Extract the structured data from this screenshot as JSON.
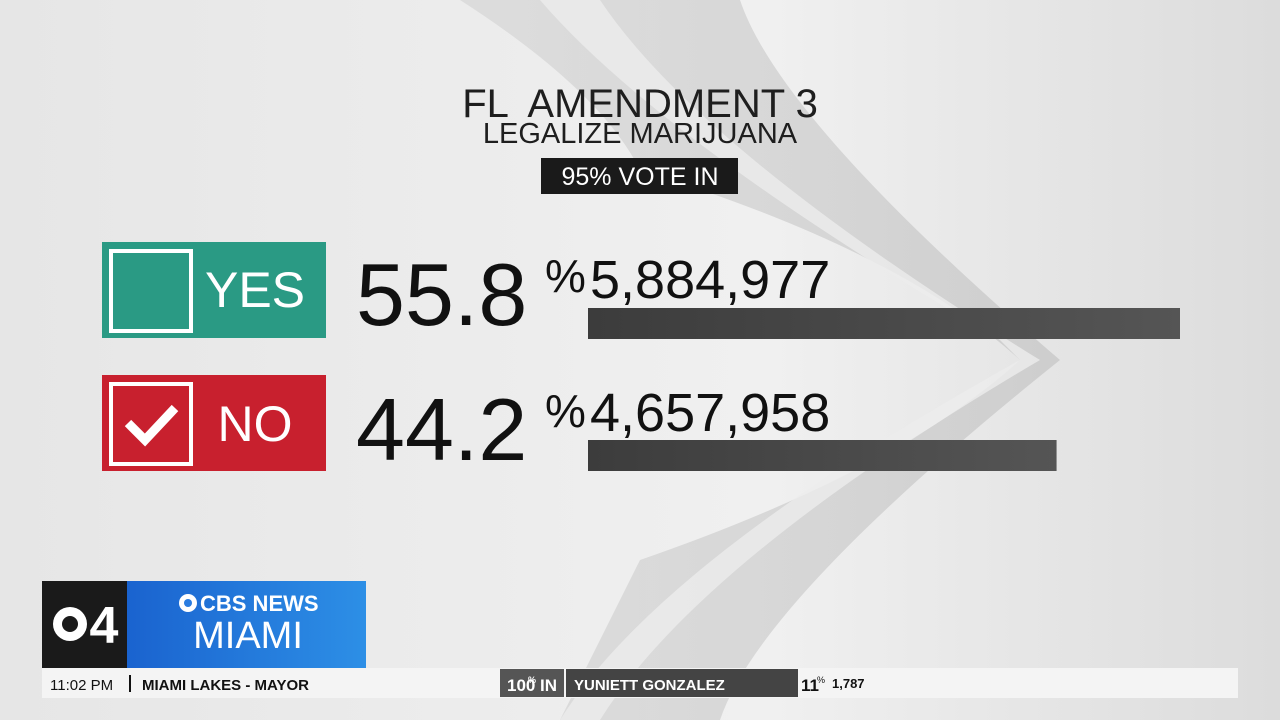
{
  "header": {
    "title": "FL  AMENDMENT 3",
    "subtitle": "LEGALIZE MARIJUANA",
    "reporting": "95% VOTE IN"
  },
  "results": [
    {
      "choice": "YES",
      "percent": "55.8",
      "percent_unit": "%",
      "votes": 5884977,
      "votes_label": "5,884,977",
      "winner": false
    },
    {
      "choice": "NO",
      "percent": "44.2",
      "percent_unit": "%",
      "votes": 4657958,
      "votes_label": "4,657,958",
      "winner": true
    }
  ],
  "logo": {
    "channel": "4",
    "brand": "CBS NEWS",
    "city": "MIAMI"
  },
  "ticker": {
    "time": "11:02 PM",
    "race": "MIAMI LAKES - MAYOR",
    "reporting": "100",
    "reporting_unit": "%",
    "reporting_text": "IN",
    "candidate": "YUNIETT GONZALEZ",
    "candidate_percent": "11",
    "candidate_percent_unit": "%",
    "candidate_votes": "1,787"
  }
}
